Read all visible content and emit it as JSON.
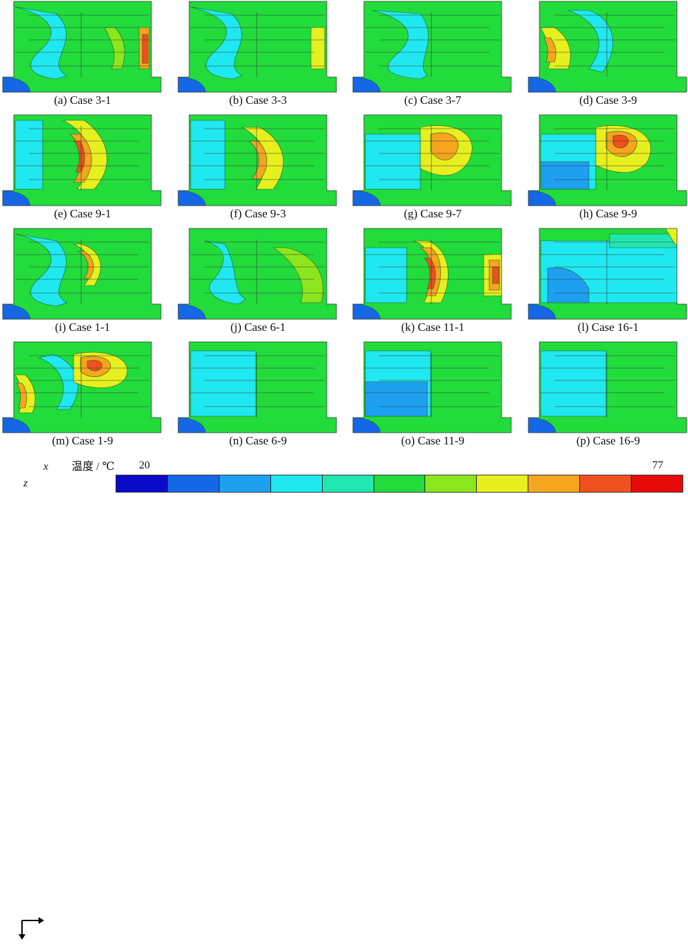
{
  "panels": [
    {
      "caption": "(a) Case 3-1",
      "variant": "s-hot-right"
    },
    {
      "caption": "(b) Case 3-3",
      "variant": "s-warm"
    },
    {
      "caption": "(c) Case 3-7",
      "variant": "s-cool"
    },
    {
      "caption": "(d) Case 3-9",
      "variant": "s-orange-left"
    },
    {
      "caption": "(e) Case 9-1",
      "variant": "mid-hot"
    },
    {
      "caption": "(f) Case 9-3",
      "variant": "mid-warm"
    },
    {
      "caption": "(g) Case 9-7",
      "variant": "upper-warm"
    },
    {
      "caption": "(h) Case 9-9",
      "variant": "upper-hot"
    },
    {
      "caption": "(i) Case 1-1",
      "variant": "s-mid-orange"
    },
    {
      "caption": "(j) Case 6-1",
      "variant": "wavy"
    },
    {
      "caption": "(k) Case 11-1",
      "variant": "dual-hot"
    },
    {
      "caption": "(l) Case 16-1",
      "variant": "cool-blue"
    },
    {
      "caption": "(m) Case 1-9",
      "variant": "upper-hot-left"
    },
    {
      "caption": "(n) Case 6-9",
      "variant": "flat-cyan"
    },
    {
      "caption": "(o) Case 11-9",
      "variant": "flat-blue"
    },
    {
      "caption": "(p) Case 16-9",
      "variant": "flat-cyan2"
    }
  ],
  "legend": {
    "title": "温度 / ℃",
    "min": "20",
    "max": "77",
    "axis_x": "x",
    "axis_z": "z",
    "colors": [
      "#0a0ac8",
      "#1468e6",
      "#1ea0f0",
      "#20e8f0",
      "#22e6b0",
      "#22dc3c",
      "#8ce61e",
      "#e6f01e",
      "#f5a51e",
      "#f0501e",
      "#e60a0a"
    ]
  },
  "palette": {
    "base": "#22dc3c",
    "cyan": "#20e8f0",
    "cyan2": "#22e6b0",
    "blue": "#1ea0f0",
    "deep": "#1468e6",
    "lime": "#8ce61e",
    "yellow": "#e6f01e",
    "orange": "#f5a51e",
    "red": "#f0501e"
  }
}
